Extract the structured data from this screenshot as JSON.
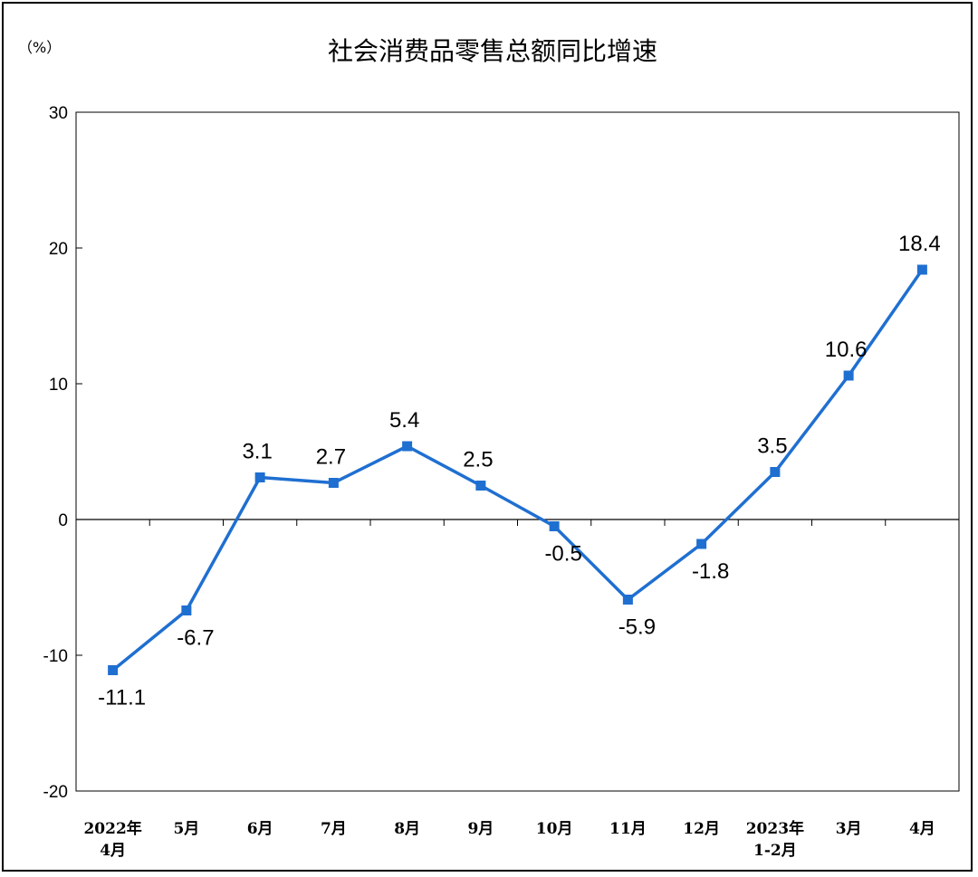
{
  "chart_data": {
    "type": "line",
    "title": "社会消费品零售总额同比增速",
    "unit_label": "（%）",
    "ylim": [
      -20,
      30
    ],
    "y_ticks": [
      30,
      20,
      10,
      0,
      -10,
      -20
    ],
    "categories": [
      [
        "2022年",
        "4月"
      ],
      [
        "5月"
      ],
      [
        "6月"
      ],
      [
        "7月"
      ],
      [
        "8月"
      ],
      [
        "9月"
      ],
      [
        "10月"
      ],
      [
        "11月"
      ],
      [
        "12月"
      ],
      [
        "2023年",
        "1-2月"
      ],
      [
        "3月"
      ],
      [
        "4月"
      ]
    ],
    "series": [
      {
        "values": [
          -11.1,
          -6.7,
          3.1,
          2.7,
          5.4,
          2.5,
          -0.5,
          -5.9,
          -1.8,
          3.5,
          10.6,
          18.4
        ],
        "labels": [
          "-11.1",
          "-6.7",
          "3.1",
          "2.7",
          "5.4",
          "2.5",
          "-0.5",
          "-5.9",
          "-1.8",
          "3.5",
          "10.6",
          "18.4"
        ],
        "label_pos": [
          "below",
          "below",
          "above",
          "above",
          "above",
          "above",
          "below",
          "below",
          "below",
          "above",
          "above",
          "above"
        ],
        "color": "#1f6fd1"
      }
    ],
    "grid": false,
    "legend": "none"
  }
}
